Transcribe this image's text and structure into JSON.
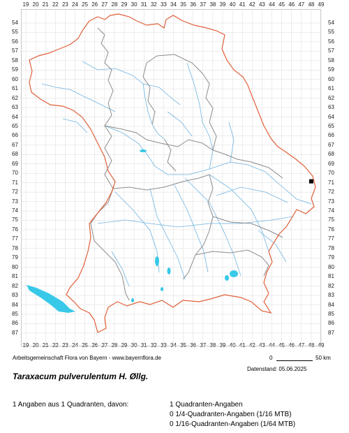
{
  "grid": {
    "x_labels": [
      "19",
      "20",
      "21",
      "22",
      "23",
      "24",
      "25",
      "26",
      "27",
      "28",
      "29",
      "30",
      "31",
      "32",
      "33",
      "34",
      "35",
      "36",
      "37",
      "38",
      "39",
      "40",
      "41",
      "42",
      "43",
      "44",
      "45",
      "46",
      "47",
      "48",
      "49"
    ],
    "y_labels": [
      "54",
      "55",
      "56",
      "57",
      "58",
      "59",
      "60",
      "61",
      "62",
      "63",
      "64",
      "65",
      "66",
      "67",
      "68",
      "69",
      "70",
      "71",
      "72",
      "73",
      "74",
      "75",
      "76",
      "77",
      "78",
      "79",
      "80",
      "81",
      "82",
      "83",
      "84",
      "85",
      "86",
      "87"
    ]
  },
  "colors": {
    "grid_line": "#d9d9d9",
    "state_border": "#e0603a",
    "district_border": "#8c8c8c",
    "rivers": "#6fb3e0",
    "lakes": "#38c8e8",
    "occurrence_marker": "#000000"
  },
  "occurrence": {
    "grid_x": "48",
    "grid_y": "71",
    "symbol": "black-square"
  },
  "credit": "Arbeitsgemeinschaft Flora von Bayern - www.bayernflora.de",
  "scale": {
    "start": "0",
    "end": "50 km"
  },
  "date_label": "Datenstand: 05.06.2025",
  "species_title": "Taraxacum pulverulentum H. Øllg.",
  "summary": {
    "left": "1 Angaben aus 1 Quadranten, davon:",
    "lines": [
      "1 Quadranten-Angaben",
      "0 1/4-Quadranten-Angaben (1/16 MTB)",
      "0 1/16-Quadranten-Angaben (1/64 MTB)"
    ]
  }
}
